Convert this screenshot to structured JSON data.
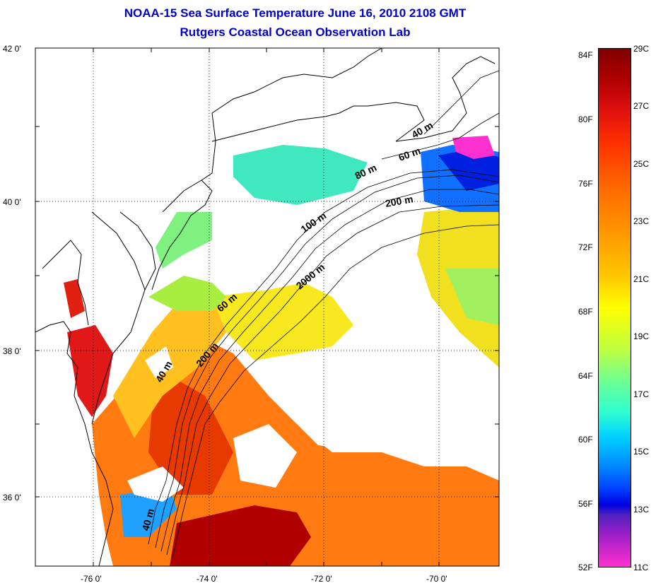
{
  "title": {
    "line1": "NOAA-15 Sea Surface Temperature June 16, 2010 2108 GMT",
    "line2": "Rutgers Coastal Ocean Observation Lab"
  },
  "map": {
    "lat_ticks": [
      "42 0'",
      "40 0'",
      "38 0'",
      "36 0'"
    ],
    "lon_ticks": [
      "-76 0'",
      "-74 0'",
      "-72 0'",
      "-70 0'"
    ],
    "lon_range": [
      -77.0,
      -68.9
    ],
    "lat_range": [
      35.0,
      42.0
    ],
    "grid": "dotted",
    "isobath_labels": [
      "40 m",
      "60 m",
      "80 m",
      "200 m",
      "100 m",
      "2000 m",
      "60 m",
      "200 m",
      "40 m",
      "40 m"
    ],
    "cloud_mask_color": "#ffffff",
    "coastline_color": "#000000"
  },
  "colorbar": {
    "fahrenheit_labels": [
      "84F",
      "80F",
      "76F",
      "72F",
      "68F",
      "64F",
      "60F",
      "56F",
      "52F"
    ],
    "celsius_labels": [
      "29C",
      "27C",
      "25C",
      "23C",
      "21C",
      "19C",
      "17C",
      "15C",
      "13C",
      "11C"
    ],
    "range_c": [
      11,
      29
    ],
    "scale_colors": [
      "#800000",
      "#ff0000",
      "#ff8c00",
      "#ffff00",
      "#60ff90",
      "#00e0ff",
      "#0040ff",
      "#0000e0",
      "#a020c8",
      "#ff30d0"
    ]
  }
}
